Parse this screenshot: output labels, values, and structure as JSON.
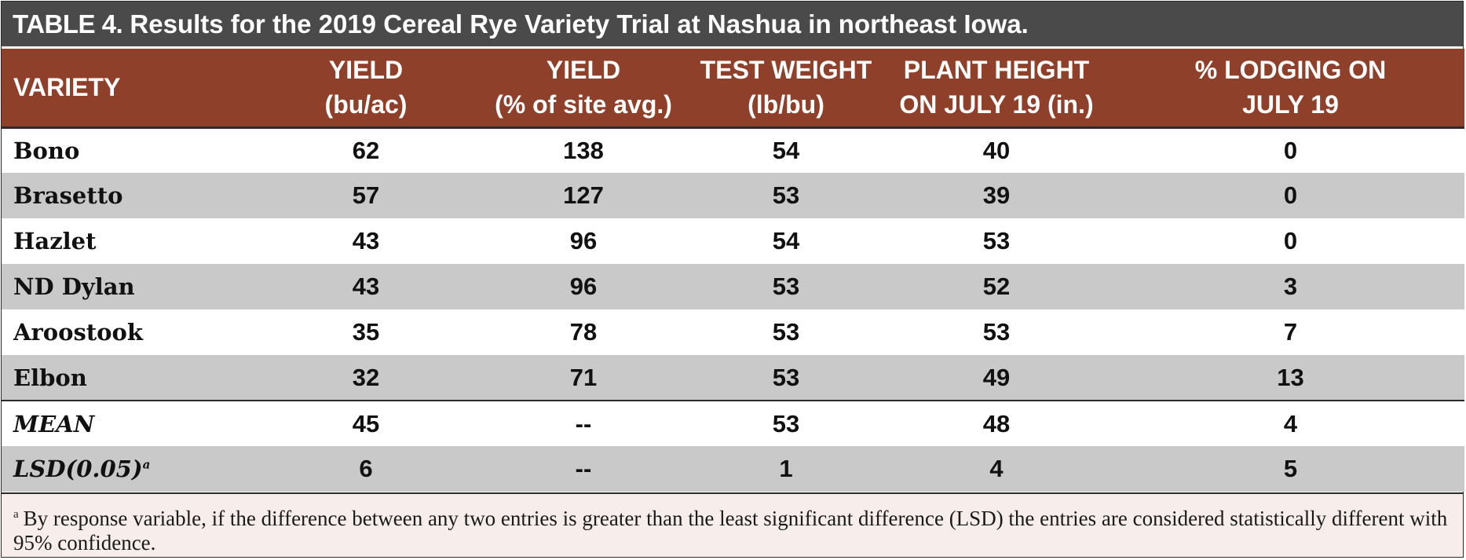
{
  "title": {
    "label": "TABLE 4.",
    "text": "Results for the 2019 Cereal Rye Variety Trial at Nashua in northeast Iowa."
  },
  "colors": {
    "title_background": "#4a4a4a",
    "header_background": "#8f402a",
    "row_shaded": "#c9c9ca",
    "footnote_background": "#f7eeec"
  },
  "columns": [
    {
      "line1": "VARIETY",
      "line2": ""
    },
    {
      "line1": "YIELD",
      "line2": "(bu/ac)"
    },
    {
      "line1": "YIELD",
      "line2": "(% of site avg.)"
    },
    {
      "line1": "TEST WEIGHT",
      "line2": "(lb/bu)"
    },
    {
      "line1": "PLANT HEIGHT",
      "line2": "ON JULY 19 (in.)"
    },
    {
      "line1": "% LODGING ON",
      "line2": "JULY 19"
    }
  ],
  "rows": [
    {
      "variety": "Bono",
      "yield_bu": "62",
      "yield_pct": "138",
      "test_weight": "54",
      "height": "40",
      "lodging": "0"
    },
    {
      "variety": "Brasetto",
      "yield_bu": "57",
      "yield_pct": "127",
      "test_weight": "53",
      "height": "39",
      "lodging": "0"
    },
    {
      "variety": "Hazlet",
      "yield_bu": "43",
      "yield_pct": "96",
      "test_weight": "54",
      "height": "53",
      "lodging": "0"
    },
    {
      "variety": "ND Dylan",
      "yield_bu": "43",
      "yield_pct": "96",
      "test_weight": "53",
      "height": "52",
      "lodging": "3"
    },
    {
      "variety": "Aroostook",
      "yield_bu": "35",
      "yield_pct": "78",
      "test_weight": "53",
      "height": "53",
      "lodging": "7"
    },
    {
      "variety": "Elbon",
      "yield_bu": "32",
      "yield_pct": "71",
      "test_weight": "53",
      "height": "49",
      "lodging": "13"
    }
  ],
  "summary": [
    {
      "label": "MEAN",
      "sup": "",
      "yield_bu": "45",
      "yield_pct": "--",
      "test_weight": "53",
      "height": "48",
      "lodging": "4"
    },
    {
      "label": "LSD(0.05)",
      "sup": "a",
      "yield_bu": "6",
      "yield_pct": "--",
      "test_weight": "1",
      "height": "4",
      "lodging": "5"
    }
  ],
  "footnote": {
    "marker": "a",
    "text": "By response variable, if the difference between any two entries is greater than the least significant difference (LSD) the entries are considered statistically different with 95% confidence."
  }
}
